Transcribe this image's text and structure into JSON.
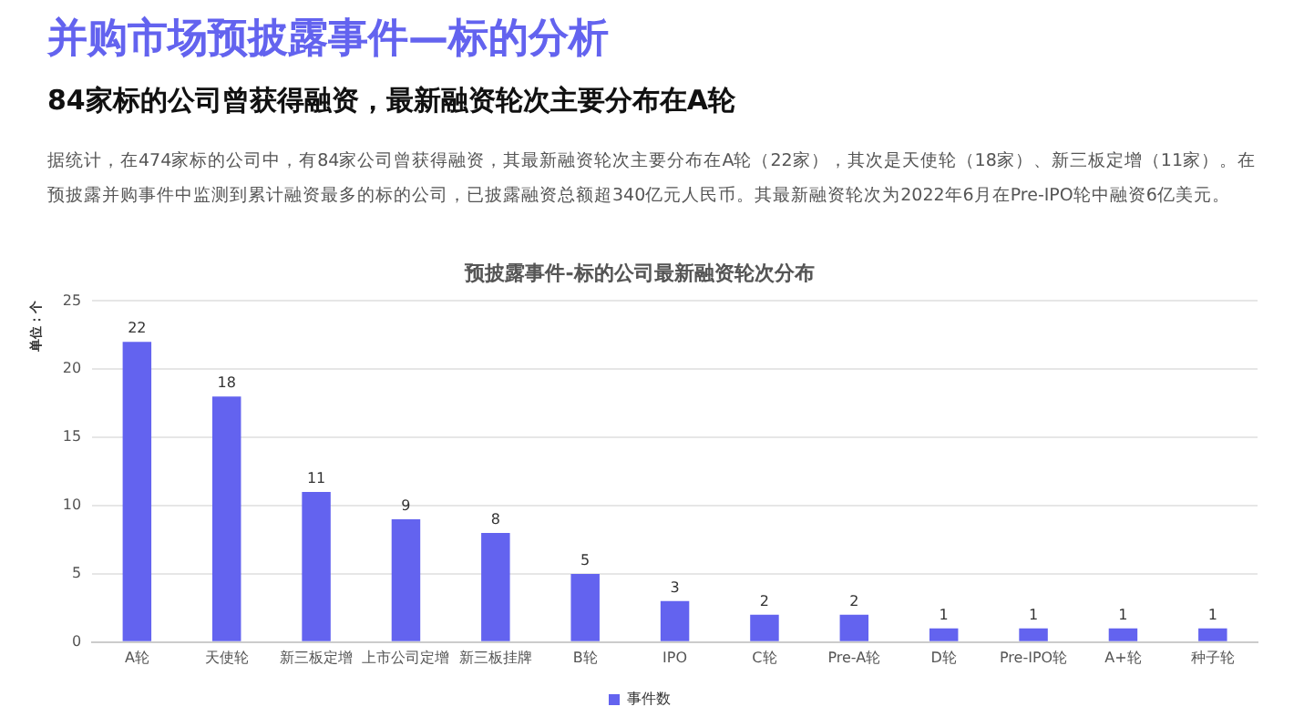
{
  "chart_data": {
    "type": "bar",
    "title": "预披露事件-标的公司最新融资轮次分布",
    "ylabel": "单位：个",
    "annotations": [
      "并购市场预披露事件—标的分析",
      "84家标的公司曾获得融资，最新融资轮次主要分布在A轮",
      "据统计，在474家标的公司中，有84家公司曾获得融资，其最新融资轮次主要分布在A轮（22家），其次是天使轮（18家）、新三板定增（11家）。在预披露并购事件中监测到累计融资最多的标的公司，已披露融资总额超340亿元人民币。其最新融资轮次为2022年6月在Pre-IPO轮中融资6亿美元。"
    ],
    "categories": [
      "A轮",
      "天使轮",
      "新三板定增",
      "上市公司定增",
      "新三板挂牌",
      "B轮",
      "IPO",
      "C轮",
      "Pre-A轮",
      "D轮",
      "Pre-IPO轮",
      "A+轮",
      "种子轮"
    ],
    "series": [
      {
        "name": "事件数",
        "color": "#6363ef",
        "values": [
          22,
          18,
          11,
          9,
          8,
          5,
          3,
          2,
          2,
          1,
          1,
          1,
          1
        ]
      }
    ],
    "ylim": [
      0,
      25
    ],
    "yticks": [
      0,
      5,
      10,
      15,
      20,
      25
    ],
    "grid": "y",
    "legend": "bottom",
    "data_labels": true
  }
}
